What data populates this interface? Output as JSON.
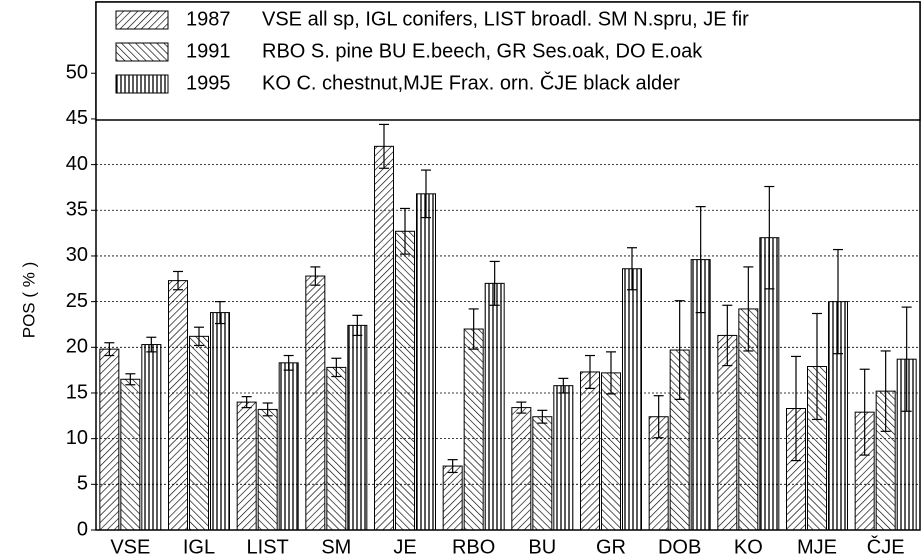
{
  "chart_data": {
    "type": "bar",
    "y_label": "POS ( % )",
    "categories": [
      "VSE",
      "IGL",
      "LIST",
      "SM",
      "JE",
      "RBO",
      "BU",
      "GR",
      "DOB",
      "KO",
      "MJE",
      "ČJE"
    ],
    "series": [
      {
        "name": "1987",
        "description": "VSE all sp, IGL conifers, LIST broadl. SM N.spru, JE fir",
        "color": "#000000",
        "hatch": "diagonal-up",
        "values": [
          19.8,
          27.3,
          14.0,
          27.8,
          42.0,
          7.0,
          13.4,
          17.3,
          12.4,
          21.3,
          13.3,
          12.9
        ],
        "errors": [
          0.7,
          1.0,
          0.6,
          1.0,
          2.4,
          0.7,
          0.6,
          1.8,
          2.3,
          3.3,
          5.7,
          4.7
        ]
      },
      {
        "name": "1991",
        "description": "RBO S. pine BU E.beech, GR Ses.oak, DO E.oak",
        "color": "#000000",
        "hatch": "diagonal-down",
        "values": [
          16.5,
          21.2,
          13.2,
          17.8,
          32.7,
          22.0,
          12.4,
          17.2,
          19.7,
          24.2,
          17.9,
          15.2
        ],
        "errors": [
          0.6,
          1.0,
          0.7,
          1.0,
          2.5,
          2.2,
          0.7,
          2.3,
          5.4,
          4.6,
          5.8,
          4.4
        ]
      },
      {
        "name": "1995",
        "description": "KO C. chestnut,MJE Frax. orn. ČJE black alder",
        "color": "#000000",
        "hatch": "vertical",
        "values": [
          20.3,
          23.8,
          18.3,
          22.4,
          36.8,
          27.0,
          15.8,
          28.6,
          29.6,
          32.0,
          25.0,
          18.7
        ],
        "errors": [
          0.8,
          1.2,
          0.8,
          1.1,
          2.6,
          2.4,
          0.8,
          2.3,
          5.8,
          5.6,
          5.7,
          5.7
        ]
      }
    ],
    "ylim": [
      0,
      57.8
    ],
    "yticks": [
      0,
      5,
      10,
      15,
      20,
      25,
      30,
      35,
      40,
      45,
      50
    ],
    "grid": true,
    "legend": "top"
  }
}
